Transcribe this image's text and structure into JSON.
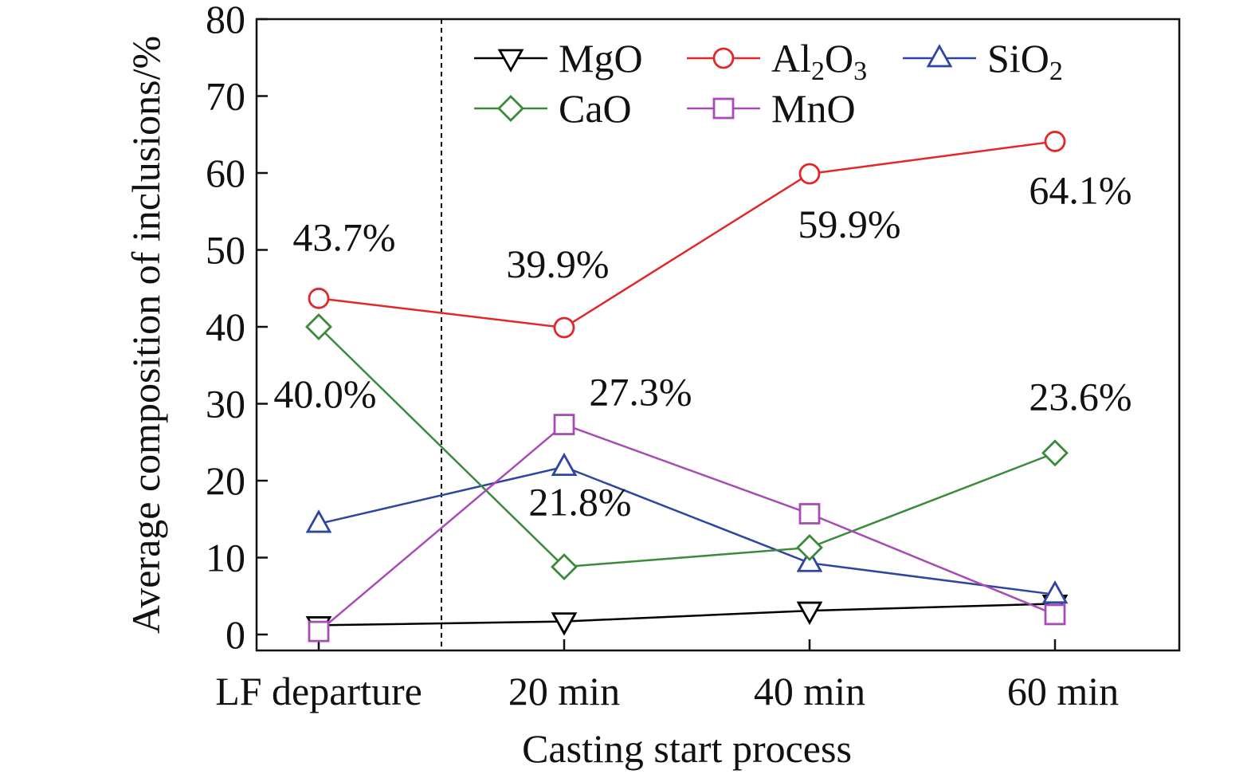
{
  "chart_data": {
    "type": "line",
    "title": "",
    "xlabel": "Casting start process",
    "ylabel": "Average composition of inclusions/%",
    "categories": [
      "LF departure",
      "20 min",
      "40 min",
      "60 min"
    ],
    "ylim": [
      0,
      80
    ],
    "yticks": [
      0,
      10,
      20,
      30,
      40,
      50,
      60,
      70,
      80
    ],
    "grid": false,
    "legend_position": "top-right",
    "divider_between": [
      "LF departure",
      "20 min"
    ],
    "series": [
      {
        "name": "MgO",
        "values": [
          1.2,
          1.7,
          3.1,
          4.0
        ],
        "color": "#000000",
        "marker": "triangle-down"
      },
      {
        "name": "Al2O3",
        "label_main": "Al",
        "sub1": "2",
        "label_mid": "O",
        "sub2": "3",
        "values": [
          43.7,
          39.9,
          59.9,
          64.1
        ],
        "color": "#e3262a",
        "marker": "circle"
      },
      {
        "name": "SiO2",
        "label_main": "SiO",
        "sub1": "2",
        "values": [
          14.4,
          21.8,
          9.3,
          5.2
        ],
        "color": "#2e45a1",
        "marker": "triangle-up"
      },
      {
        "name": "CaO",
        "values": [
          40.0,
          8.8,
          11.3,
          23.6
        ],
        "color": "#3a8a3a",
        "marker": "diamond"
      },
      {
        "name": "MnO",
        "values": [
          0.4,
          27.3,
          15.7,
          2.6
        ],
        "color": "#a74bb5",
        "marker": "square"
      }
    ],
    "annotations": [
      {
        "text": "43.7%",
        "series": "Al2O3",
        "category": "LF departure"
      },
      {
        "text": "39.9%",
        "series": "Al2O3",
        "category": "20 min"
      },
      {
        "text": "59.9%",
        "series": "Al2O3",
        "category": "40 min"
      },
      {
        "text": "64.1%",
        "series": "Al2O3",
        "category": "60 min"
      },
      {
        "text": "40.0%",
        "series": "CaO",
        "category": "LF departure"
      },
      {
        "text": "27.3%",
        "series": "MnO",
        "category": "20 min"
      },
      {
        "text": "21.8%",
        "series": "SiO2",
        "category": "20 min"
      },
      {
        "text": "23.6%",
        "series": "CaO",
        "category": "60 min"
      }
    ]
  }
}
